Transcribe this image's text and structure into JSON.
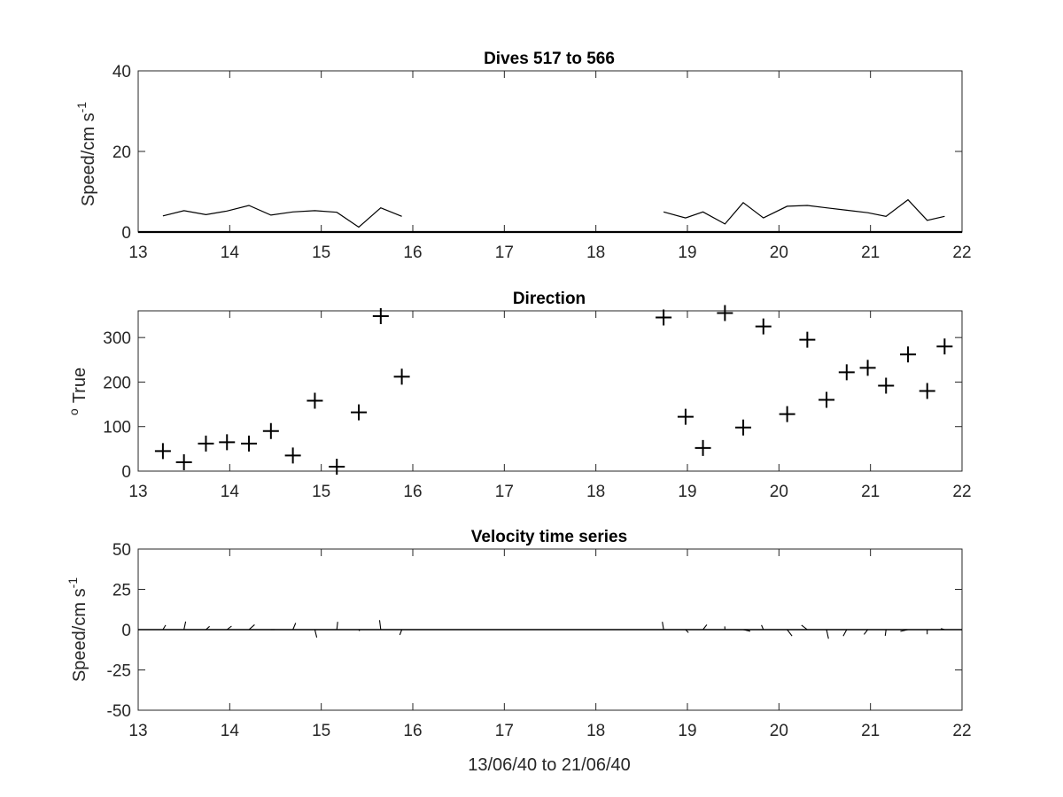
{
  "figure": {
    "xlabel": "13/06/40 to 21/06/40",
    "background": "#ffffff",
    "line_color": "#000000"
  },
  "chart_data": [
    {
      "type": "line",
      "title": "Dives 517 to 566",
      "xlabel": "",
      "ylabel": "Speed/cm s",
      "ylabel_exponent": "-1",
      "xlim": [
        13,
        22
      ],
      "ylim": [
        0,
        40
      ],
      "xticks": [
        13,
        14,
        15,
        16,
        17,
        18,
        19,
        20,
        21,
        22
      ],
      "yticks": [
        0,
        20,
        40
      ],
      "ytick_labels": [
        "0",
        "20",
        "40"
      ],
      "grid": false,
      "series": [
        {
          "x": [
            13.27,
            13.5,
            13.74,
            13.97,
            14.21,
            14.45,
            14.69,
            14.93,
            15.17,
            15.41,
            15.65,
            15.88,
            null,
            18.74,
            18.98,
            19.17,
            19.41,
            19.61,
            19.83,
            20.09,
            20.31,
            20.52,
            20.74,
            20.97,
            21.17,
            21.41,
            21.62,
            21.81
          ],
          "y": [
            4,
            5.3,
            4.3,
            5.2,
            6.6,
            4.2,
            5,
            5.3,
            4.9,
            1.2,
            6,
            3.9,
            null,
            5,
            3.5,
            5,
            2,
            7.3,
            3.5,
            6.4,
            6.6,
            6,
            5.4,
            4.8,
            3.9,
            8,
            2.9,
            3.9
          ]
        }
      ]
    },
    {
      "type": "scatter",
      "title": "Direction",
      "xlabel": "",
      "ylabel": "True",
      "ylabel_prefix": "o",
      "xlim": [
        13,
        22
      ],
      "ylim": [
        0,
        360
      ],
      "xticks": [
        13,
        14,
        15,
        16,
        17,
        18,
        19,
        20,
        21,
        22
      ],
      "yticks": [
        0,
        100,
        200,
        300
      ],
      "ytick_labels": [
        "0",
        "100",
        "200",
        "300"
      ],
      "grid": false,
      "marker": "+",
      "series": [
        {
          "x": [
            13.27,
            13.5,
            13.74,
            13.97,
            14.21,
            14.45,
            14.69,
            14.93,
            15.17,
            15.41,
            15.65,
            15.88,
            18.74,
            18.98,
            19.17,
            19.41,
            19.61,
            19.83,
            20.09,
            20.31,
            20.52,
            20.74,
            20.97,
            21.17,
            21.41,
            21.62,
            21.81
          ],
          "y": [
            45,
            20,
            62,
            65,
            62,
            90,
            35,
            158,
            10,
            132,
            348,
            212,
            345,
            122,
            52,
            355,
            98,
            325,
            128,
            295,
            160,
            222,
            232,
            192,
            262,
            180,
            280
          ]
        }
      ]
    },
    {
      "type": "line",
      "title": "Velocity time series",
      "xlabel": "13/06/40 to 21/06/40",
      "ylabel": "Speed/cm s",
      "ylabel_exponent": "-1",
      "xlim": [
        13,
        22
      ],
      "ylim": [
        -50,
        50
      ],
      "xticks": [
        13,
        14,
        15,
        16,
        17,
        18,
        19,
        20,
        21,
        22
      ],
      "yticks": [
        -50,
        -25,
        0,
        25,
        50
      ],
      "ytick_labels": [
        "-50",
        "-25",
        "0",
        "25",
        "50"
      ],
      "grid": false,
      "series": [
        {
          "x": [
            13.27,
            13.5,
            13.74,
            13.97,
            14.21,
            14.45,
            14.69,
            14.93,
            15.17,
            15.41,
            15.65,
            15.88,
            18.74,
            18.98,
            19.17,
            19.41,
            19.61,
            19.83,
            20.09,
            20.31,
            20.52,
            20.74,
            20.97,
            21.17,
            21.41,
            21.62,
            21.81
          ],
          "speed": [
            4,
            5.3,
            4.3,
            5.2,
            6.6,
            4.2,
            5,
            5.3,
            4.9,
            1.2,
            6,
            3.9,
            5,
            3.5,
            5,
            2,
            7.3,
            3.5,
            6.4,
            6.6,
            6,
            5.4,
            4.8,
            3.9,
            8,
            2.9,
            3.9
          ],
          "direction": [
            45,
            20,
            62,
            65,
            62,
            90,
            35,
            158,
            10,
            132,
            348,
            212,
            345,
            122,
            52,
            355,
            98,
            325,
            128,
            295,
            160,
            222,
            232,
            192,
            262,
            180,
            280
          ]
        }
      ]
    }
  ]
}
